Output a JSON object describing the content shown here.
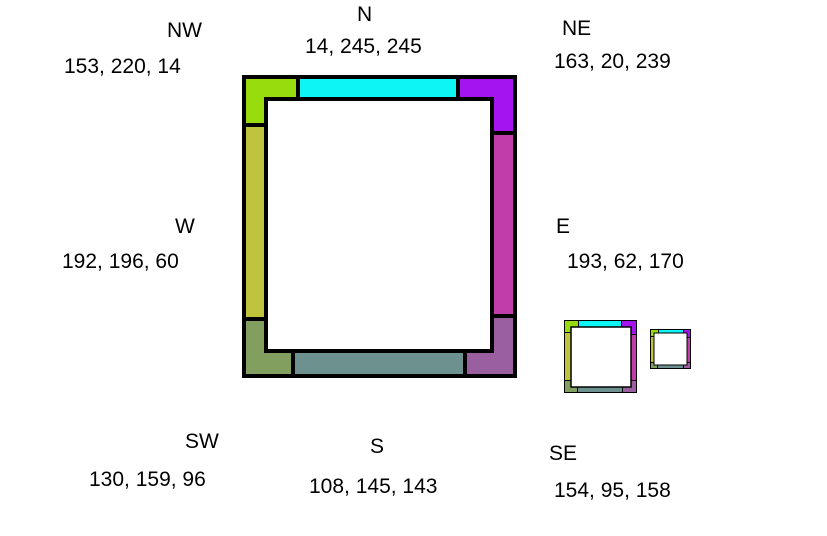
{
  "regions": {
    "nw": {
      "name": "NW",
      "rgb": "153, 220, 14",
      "color": "#99dc0e"
    },
    "n": {
      "name": "N",
      "rgb": "14, 245, 245",
      "color": "#0ef5f5"
    },
    "ne": {
      "name": "NE",
      "rgb": "163, 20, 239",
      "color": "#a314ef"
    },
    "w": {
      "name": "W",
      "rgb": "192, 196, 60",
      "color": "#c0c43c"
    },
    "e": {
      "name": "E",
      "rgb": "193, 62, 170",
      "color": "#c13eaa"
    },
    "sw": {
      "name": "SW",
      "rgb": "130, 159, 96",
      "color": "#829f60"
    },
    "s": {
      "name": "S",
      "rgb": "108, 145, 143",
      "color": "#6c918f"
    },
    "se": {
      "name": "SE",
      "rgb": "154, 95, 158",
      "color": "#9a5f9e"
    }
  }
}
